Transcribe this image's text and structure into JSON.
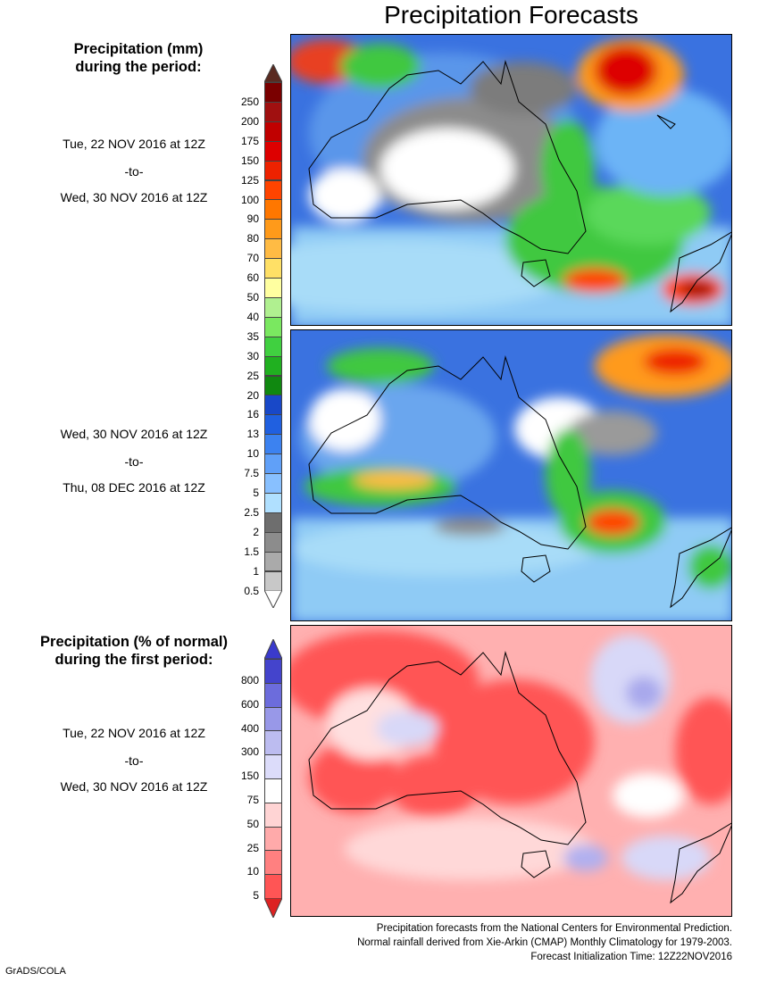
{
  "title": "Precipitation Forecasts",
  "left_labels": {
    "mm_heading": [
      "Precipitation (mm)",
      "during the period:"
    ],
    "period1": [
      "Tue, 22 NOV 2016 at 12Z",
      "-to-",
      "Wed, 30 NOV 2016 at 12Z"
    ],
    "period2": [
      "Wed, 30 NOV 2016 at 12Z",
      "-to-",
      "Thu, 08 DEC 2016 at 12Z"
    ],
    "pct_heading": [
      "Precipitation (% of normal)",
      "during the first period:"
    ],
    "period3": [
      "Tue, 22 NOV 2016 at 12Z",
      "-to-",
      "Wed, 30 NOV 2016 at 12Z"
    ]
  },
  "legend_mm": {
    "labels": [
      "250",
      "200",
      "175",
      "150",
      "125",
      "100",
      "90",
      "80",
      "70",
      "60",
      "50",
      "40",
      "35",
      "30",
      "25",
      "20",
      "16",
      "13",
      "10",
      "7.5",
      "5",
      "2.5",
      "2",
      "1.5",
      "1",
      "0.5"
    ],
    "colors": [
      "#7a0000",
      "#a01010",
      "#c00000",
      "#dd0000",
      "#ee2200",
      "#ff4400",
      "#ff7700",
      "#ff9a1a",
      "#ffbb44",
      "#ffe066",
      "#ffffa0",
      "#b0f090",
      "#7ae860",
      "#40d040",
      "#20b020",
      "#108810",
      "#1848c8",
      "#2060e0",
      "#3c82f0",
      "#60a0f8",
      "#88c0ff",
      "#b0e0ff",
      "#6e6e6e",
      "#8c8c8c",
      "#aaaaaa",
      "#c8c8c8"
    ],
    "top_arrow_color": "#5a2a20",
    "bottom_arrow_color": "#ffffff"
  },
  "legend_pct": {
    "labels": [
      "800",
      "600",
      "400",
      "300",
      "150",
      "75",
      "50",
      "25",
      "10",
      "5"
    ],
    "colors": [
      "#4444cc",
      "#6c6cdc",
      "#9898e8",
      "#bcbcf0",
      "#dcdcfa",
      "#ffffff",
      "#ffd4d4",
      "#ffaaaa",
      "#ff8080",
      "#ff5555"
    ],
    "top_arrow_color": "#3a3acc",
    "bottom_arrow_color": "#dd2222"
  },
  "footer": [
    "Precipitation forecasts from the National Centers for Environmental Prediction.",
    "Normal rainfall derived from Xie-Arkin (CMAP) Monthly Climatology for 1979-2003.",
    "Forecast Initialization Time: 12Z22NOV2016"
  ],
  "credit": "GrADS/COLA"
}
